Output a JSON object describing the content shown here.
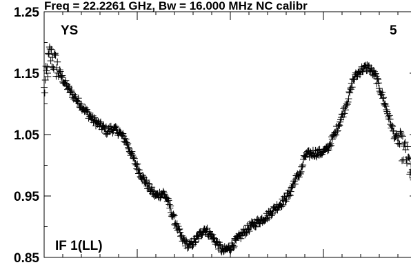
{
  "chart_data": {
    "type": "scatter",
    "title": "Freq = 22.2261 GHz, Bw = 16.000 MHz  NC calibr",
    "xlabel": "",
    "ylabel": "",
    "ylim": [
      0.85,
      1.25
    ],
    "xlim": [
      0,
      100
    ],
    "yticks": [
      0.85,
      0.95,
      1.05,
      1.15,
      1.25
    ],
    "ytick_labels": [
      "0.85",
      "0.95",
      "1.05",
      "1.15",
      "1.25"
    ],
    "xticks_major": [
      0,
      25,
      50,
      75,
      100
    ],
    "grid": false,
    "legend": "none",
    "marker": "plus",
    "color": "#000000",
    "annotations": {
      "top_left": "YS",
      "top_right": "5",
      "bottom_left": "IF 1(LL)"
    },
    "profile": {
      "x": [
        0,
        1.5,
        3,
        5,
        7,
        9,
        11,
        13,
        15,
        17,
        18,
        20,
        22,
        24,
        26,
        28,
        30,
        32,
        33,
        35,
        37,
        39,
        41,
        43,
        45,
        48,
        50,
        52,
        54,
        56,
        58,
        60,
        62,
        64,
        66,
        67,
        69,
        70,
        72,
        74,
        76,
        78,
        80,
        82,
        83,
        85,
        87,
        89,
        91,
        93,
        94,
        95,
        97,
        99,
        100
      ],
      "y": [
        1.12,
        1.18,
        1.165,
        1.14,
        1.12,
        1.105,
        1.09,
        1.075,
        1.065,
        1.055,
        1.06,
        1.055,
        1.04,
        1.01,
        0.985,
        0.965,
        0.95,
        0.955,
        0.945,
        0.91,
        0.88,
        0.868,
        0.88,
        0.897,
        0.885,
        0.86,
        0.866,
        0.88,
        0.893,
        0.903,
        0.91,
        0.918,
        0.93,
        0.94,
        0.955,
        0.972,
        0.99,
        1.015,
        1.02,
        1.02,
        1.025,
        1.05,
        1.08,
        1.115,
        1.14,
        1.155,
        1.16,
        1.145,
        1.11,
        1.07,
        1.05,
        1.04,
        1.02,
        0.985,
        0.955
      ]
    }
  }
}
